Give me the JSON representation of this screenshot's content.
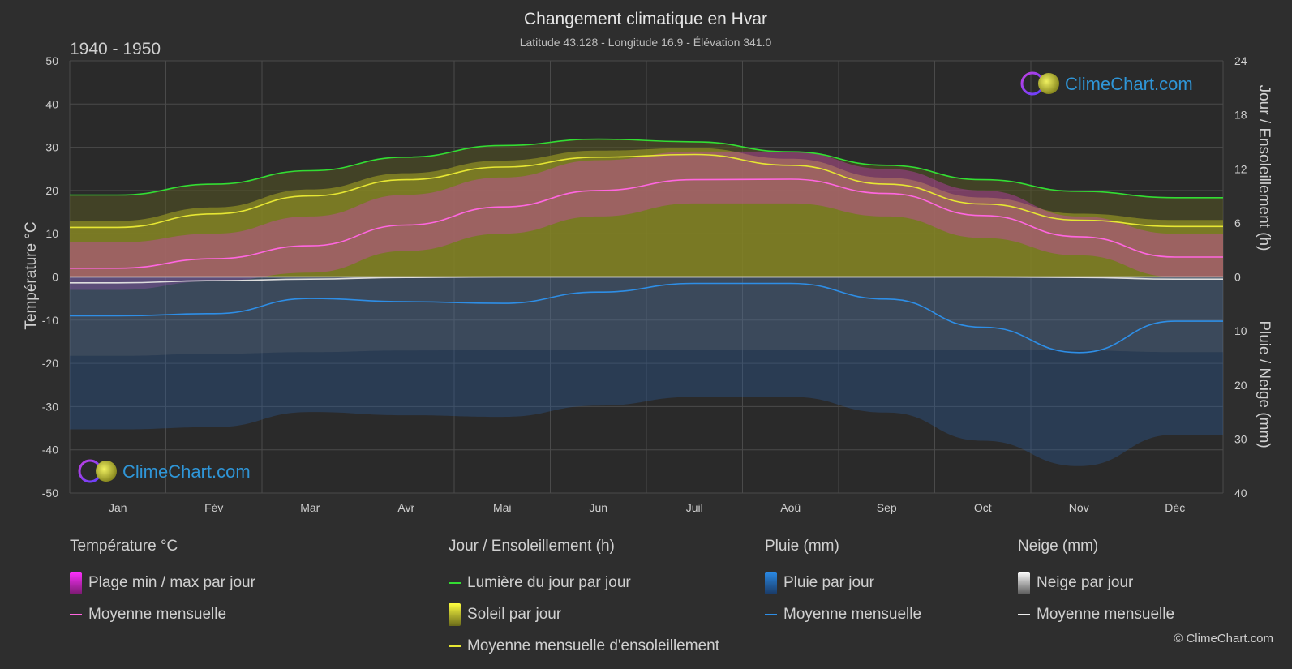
{
  "title": "Changement climatique en Hvar",
  "subtitle": "Latitude 43.128 - Longitude 16.9 - Élévation 341.0",
  "period": "1940 - 1950",
  "watermark": "ClimeChart.com",
  "copyright": "© ClimeChart.com",
  "colors": {
    "background": "#2e2e2e",
    "plot_background": "#2a2a2a",
    "grid": "#4a4a4a",
    "temp_range": "#d63cc4",
    "temp_mean": "#ff66e0",
    "daylight": "#33dd33",
    "sunshine_fill": "#8c8c24",
    "sunshine_mean": "#e6e633",
    "rain_fill": "#2a5fa0",
    "rain_mean": "#2e8ee6",
    "snow_fill": "#7a7a7a",
    "snow_mean": "#dddddd",
    "brand": "#2f96d8"
  },
  "chart_data": {
    "type": "area",
    "months": [
      "Jan",
      "Fév",
      "Mar",
      "Avr",
      "Mai",
      "Jun",
      "Juil",
      "Aoû",
      "Sep",
      "Oct",
      "Nov",
      "Déc"
    ],
    "left_axis": {
      "label": "Température °C",
      "ylim": [
        -50,
        50
      ],
      "ticks": [
        50,
        40,
        30,
        20,
        10,
        0,
        -10,
        -20,
        -30,
        -40,
        -50
      ]
    },
    "right_axis_top": {
      "label": "Jour / Ensoleillement (h)",
      "ylim": [
        0,
        24
      ],
      "ticks": [
        24,
        18,
        12,
        6,
        0
      ]
    },
    "right_axis_bottom": {
      "label": "Pluie / Neige (mm)",
      "ylim": [
        0,
        40
      ],
      "ticks": [
        0,
        10,
        20,
        30,
        40
      ]
    },
    "series": [
      {
        "name": "Lumière du jour par jour",
        "axis": "hours",
        "values": [
          9.1,
          10.3,
          11.8,
          13.3,
          14.6,
          15.3,
          15.0,
          13.9,
          12.4,
          10.8,
          9.5,
          8.8
        ]
      },
      {
        "name": "Moyenne mensuelle d'ensoleillement",
        "axis": "hours",
        "values": [
          5.5,
          7.0,
          9.0,
          10.8,
          12.2,
          13.3,
          13.6,
          12.4,
          10.3,
          8.1,
          6.3,
          5.6
        ]
      },
      {
        "name": "Température moyenne mensuelle",
        "axis": "celsius",
        "values": [
          2.0,
          4.2,
          7.2,
          12.0,
          16.2,
          20.0,
          22.5,
          22.6,
          19.3,
          14.2,
          9.3,
          4.6
        ]
      },
      {
        "name": "Température max (plage)",
        "axis": "celsius",
        "values": [
          8.0,
          10.0,
          14.0,
          19.0,
          23.0,
          27.0,
          29.0,
          29.0,
          25.0,
          20.0,
          14.0,
          10.0
        ]
      },
      {
        "name": "Température min (plage)",
        "axis": "celsius",
        "values": [
          -3.0,
          -1.0,
          1.0,
          6.0,
          10.0,
          14.0,
          17.0,
          17.0,
          14.0,
          9.0,
          5.0,
          0.0
        ]
      },
      {
        "name": "Pluie moyenne mensuelle",
        "axis": "mm",
        "values": [
          7.2,
          6.8,
          4.0,
          4.6,
          4.9,
          2.8,
          1.2,
          1.2,
          4.1,
          9.3,
          14.0,
          8.2
        ]
      },
      {
        "name": "Neige moyenne mensuelle",
        "axis": "mm",
        "values": [
          1.1,
          0.7,
          0.4,
          0.1,
          0.0,
          0.0,
          0.0,
          0.0,
          0.0,
          0.0,
          0.1,
          0.4
        ]
      }
    ]
  },
  "legend": {
    "groups": [
      {
        "title": "Température °C",
        "items": [
          {
            "label": "Plage min / max par jour",
            "swatch": "box",
            "color": "#d63cc4"
          },
          {
            "label": "Moyenne mensuelle",
            "swatch": "line",
            "color": "#ff66e0"
          }
        ]
      },
      {
        "title": "Jour / Ensoleillement (h)",
        "items": [
          {
            "label": "Lumière du jour par jour",
            "swatch": "line",
            "color": "#33dd33"
          },
          {
            "label": "Soleil par jour",
            "swatch": "box",
            "color": "#c8c83a"
          },
          {
            "label": "Moyenne mensuelle d'ensoleillement",
            "swatch": "line",
            "color": "#e6e633"
          }
        ]
      },
      {
        "title": "Pluie (mm)",
        "items": [
          {
            "label": "Pluie par jour",
            "swatch": "box",
            "color": "#2a7bd0"
          },
          {
            "label": "Moyenne mensuelle",
            "swatch": "line",
            "color": "#2e8ee6"
          }
        ]
      },
      {
        "title": "Neige (mm)",
        "items": [
          {
            "label": "Neige par jour",
            "swatch": "box",
            "color": "#dddddd"
          },
          {
            "label": "Moyenne mensuelle",
            "swatch": "line",
            "color": "#eeeeee"
          }
        ]
      }
    ]
  }
}
